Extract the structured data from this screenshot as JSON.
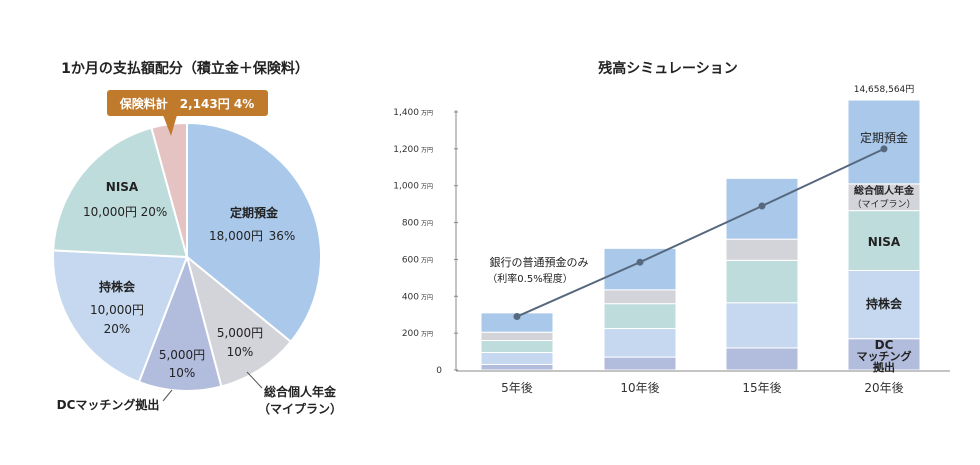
{
  "chart_data": [
    {
      "type": "pie",
      "title": "1か月の支払額配分（積立金＋保険料）",
      "slices": [
        {
          "name": "定期預金",
          "value_text": "18,000円",
          "pct_text": "36%",
          "value": 18000,
          "pct": 36,
          "color": "#a9c8ea"
        },
        {
          "name": "総合個人年金",
          "name2": "（マイプラン）",
          "value_text": "5,000円",
          "pct_text": "10%",
          "value": 5000,
          "pct": 10,
          "color": "#d3d3da"
        },
        {
          "name": "DCマッチング拠出",
          "value_text": "5,000円",
          "pct_text": "10%",
          "value": 5000,
          "pct": 10,
          "color": "#b2bcdc"
        },
        {
          "name": "持株会",
          "value_text": "10,000円",
          "pct_text": "20%",
          "value": 10000,
          "pct": 20,
          "color": "#c5d8f0"
        },
        {
          "name": "NISA",
          "value_text": "10,000円",
          "pct_text": "20%",
          "value": 10000,
          "pct": 20,
          "color": "#bfdcdc"
        },
        {
          "name": "保険料計",
          "value_text": "2,143円",
          "pct_text": "4%",
          "value": 2143,
          "pct": 4,
          "color": "#e6c3c3"
        }
      ],
      "callout": {
        "text": "保険料計　2,143円 4%",
        "color": "#bf7a2c"
      }
    },
    {
      "type": "bar",
      "stacked": true,
      "title": "残高シミュレーション",
      "unit": "万円",
      "categories": [
        "5年後",
        "10年後",
        "15年後",
        "20年後"
      ],
      "ylim": [
        0,
        1400
      ],
      "yticks": [
        {
          "value": 0,
          "label": "0",
          "unit": ""
        },
        {
          "value": 200,
          "label": "200",
          "unit": "万円"
        },
        {
          "value": 400,
          "label": "400",
          "unit": "万円"
        },
        {
          "value": 600,
          "label": "600",
          "unit": "万円"
        },
        {
          "value": 800,
          "label": "800",
          "unit": "万円"
        },
        {
          "value": 1000,
          "label": "1,000",
          "unit": "万円"
        },
        {
          "value": 1200,
          "label": "1,200",
          "unit": "万円"
        },
        {
          "value": 1400,
          "label": "1,400",
          "unit": "万円"
        }
      ],
      "series": [
        {
          "name": "DCマッチング拠出",
          "color": "#b2bcdc",
          "values": [
            30,
            70,
            120,
            170
          ]
        },
        {
          "name": "持株会",
          "color": "#c5d8f0",
          "values": [
            65,
            155,
            245,
            370
          ]
        },
        {
          "name": "NISA",
          "color": "#bfdcdc",
          "values": [
            65,
            135,
            230,
            325
          ]
        },
        {
          "name": "総合個人年金（マイプラン）",
          "color": "#d3d3da",
          "values": [
            45,
            75,
            115,
            145
          ]
        },
        {
          "name": "定期預金",
          "color": "#a9c8ea",
          "values": [
            105,
            225,
            330,
            455
          ]
        }
      ],
      "segment_labels": [
        "DCマッチング拠出",
        "持株会",
        "NISA",
        "総合個人年金（マイプラン）",
        "定期預金"
      ],
      "total_label": "14,658,564円",
      "line": {
        "name": "銀行の普通預金のみ",
        "note": "（利率0.5%程度）",
        "values": [
          290,
          585,
          890,
          1200
        ],
        "color": "#56687e"
      }
    }
  ],
  "labels": {
    "ext_pension_1": "総合個人年金",
    "ext_pension_2": "（マイプラン）",
    "ext_dc": "DCマッチング拠出",
    "seg_dc_1": "DC",
    "seg_dc_2": "マッチング",
    "seg_dc_3": "拠出",
    "seg_pension_1": "総合個人年金",
    "seg_pension_2": "（マイプラン）"
  }
}
